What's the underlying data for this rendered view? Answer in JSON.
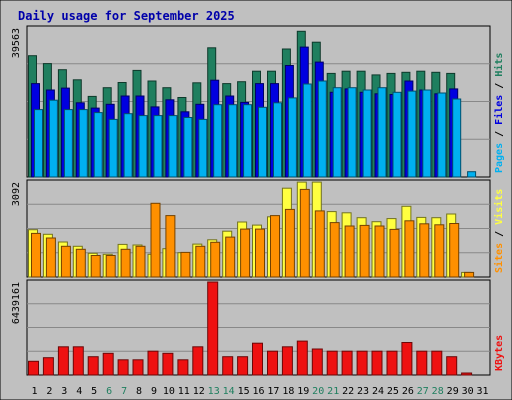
{
  "title": "Daily usage for September 2025",
  "days": [
    "1",
    "2",
    "3",
    "4",
    "5",
    "6",
    "7",
    "8",
    "9",
    "10",
    "11",
    "12",
    "13",
    "14",
    "15",
    "16",
    "17",
    "18",
    "19",
    "20",
    "21",
    "22",
    "23",
    "24",
    "25",
    "26",
    "27",
    "28",
    "29",
    "30",
    "31"
  ],
  "weekend_days": [
    "6",
    "7",
    "13",
    "14",
    "20",
    "21",
    "27",
    "28"
  ],
  "colors": {
    "background": "#c0c0c0",
    "frame": "#000000",
    "title": "#0000aa",
    "hits": "#1f7f5f",
    "files": "#0000e0",
    "pages": "#00b0f0",
    "visits": "#ffff40",
    "sites": "#ff9000",
    "kbytes": "#ee1111",
    "weekday_label": "#000000",
    "weekend_label": "#1f7f5f"
  },
  "chart_data": [
    {
      "type": "bar",
      "legend": [
        "Pages",
        "Files",
        "Hits"
      ],
      "ymax_label": "39563",
      "ylim": [
        0,
        39563
      ],
      "categories": [
        "1",
        "2",
        "3",
        "4",
        "5",
        "6",
        "7",
        "8",
        "9",
        "10",
        "11",
        "12",
        "13",
        "14",
        "15",
        "16",
        "17",
        "18",
        "19",
        "20",
        "21",
        "22",
        "23",
        "24",
        "25",
        "26",
        "27",
        "28",
        "29",
        "30",
        "31"
      ],
      "series": [
        {
          "name": "Hits",
          "values": [
            32200,
            30100,
            28500,
            25800,
            21400,
            23700,
            25100,
            28300,
            25500,
            23700,
            21100,
            25000,
            34300,
            24800,
            25300,
            28100,
            28100,
            34000,
            38700,
            35800,
            27500,
            28100,
            28100,
            27100,
            27500,
            27800,
            28100,
            27800,
            27500,
            0,
            0
          ]
        },
        {
          "name": "Files",
          "values": [
            24800,
            23100,
            23600,
            19700,
            18300,
            19300,
            21500,
            21500,
            18600,
            20500,
            17300,
            19300,
            25700,
            21500,
            19800,
            24800,
            24800,
            29600,
            34500,
            30500,
            22500,
            23400,
            22500,
            22100,
            21900,
            25500,
            23100,
            22100,
            23400,
            0,
            0
          ]
        },
        {
          "name": "Pages",
          "values": [
            17900,
            20400,
            17900,
            17900,
            17100,
            15300,
            16800,
            16300,
            16300,
            16300,
            15800,
            15300,
            19200,
            19200,
            19200,
            18500,
            19700,
            21000,
            24700,
            25500,
            23700,
            23700,
            23100,
            23700,
            22500,
            22800,
            23100,
            22300,
            20700,
            1400,
            0
          ]
        }
      ]
    },
    {
      "type": "bar",
      "legend": [
        "Sites",
        "Visits"
      ],
      "ymax_label": "3092",
      "ylim": [
        0,
        3092
      ],
      "categories": [
        "1",
        "2",
        "3",
        "4",
        "5",
        "6",
        "7",
        "8",
        "9",
        "10",
        "11",
        "12",
        "13",
        "14",
        "15",
        "16",
        "17",
        "18",
        "19",
        "20",
        "21",
        "22",
        "23",
        "24",
        "25",
        "26",
        "27",
        "28",
        "29",
        "30",
        "31"
      ],
      "series": [
        {
          "name": "Visits",
          "values": [
            1540,
            1390,
            1140,
            1000,
            770,
            740,
            1060,
            1040,
            740,
            920,
            790,
            1070,
            1210,
            1490,
            1790,
            1690,
            1960,
            2890,
            3090,
            3090,
            2130,
            2090,
            1930,
            1800,
            1900,
            2300,
            1940,
            1930,
            2050,
            150,
            0
          ]
        },
        {
          "name": "Sites",
          "values": [
            1420,
            1270,
            1000,
            900,
            700,
            700,
            900,
            1000,
            2400,
            2000,
            800,
            1000,
            1130,
            1300,
            1560,
            1560,
            2000,
            2200,
            2850,
            2150,
            1770,
            1660,
            1680,
            1660,
            1550,
            1830,
            1730,
            1700,
            1740,
            150,
            0
          ]
        }
      ]
    },
    {
      "type": "bar",
      "legend": [
        "KBytes"
      ],
      "ymax_label": "6439161",
      "ylim": [
        0,
        6439161
      ],
      "categories": [
        "1",
        "2",
        "3",
        "4",
        "5",
        "6",
        "7",
        "8",
        "9",
        "10",
        "11",
        "12",
        "13",
        "14",
        "15",
        "16",
        "17",
        "18",
        "19",
        "20",
        "21",
        "22",
        "23",
        "24",
        "25",
        "26",
        "27",
        "28",
        "29",
        "30",
        "31"
      ],
      "series": [
        {
          "name": "KBytes",
          "values": [
            950000,
            1200000,
            1950000,
            1950000,
            1270000,
            1500000,
            1050000,
            1050000,
            1650000,
            1500000,
            1050000,
            1950000,
            6439000,
            1270000,
            1270000,
            2200000,
            1650000,
            1950000,
            2350000,
            1800000,
            1650000,
            1650000,
            1650000,
            1650000,
            1650000,
            2250000,
            1650000,
            1650000,
            1270000,
            90000,
            0
          ]
        }
      ]
    }
  ]
}
